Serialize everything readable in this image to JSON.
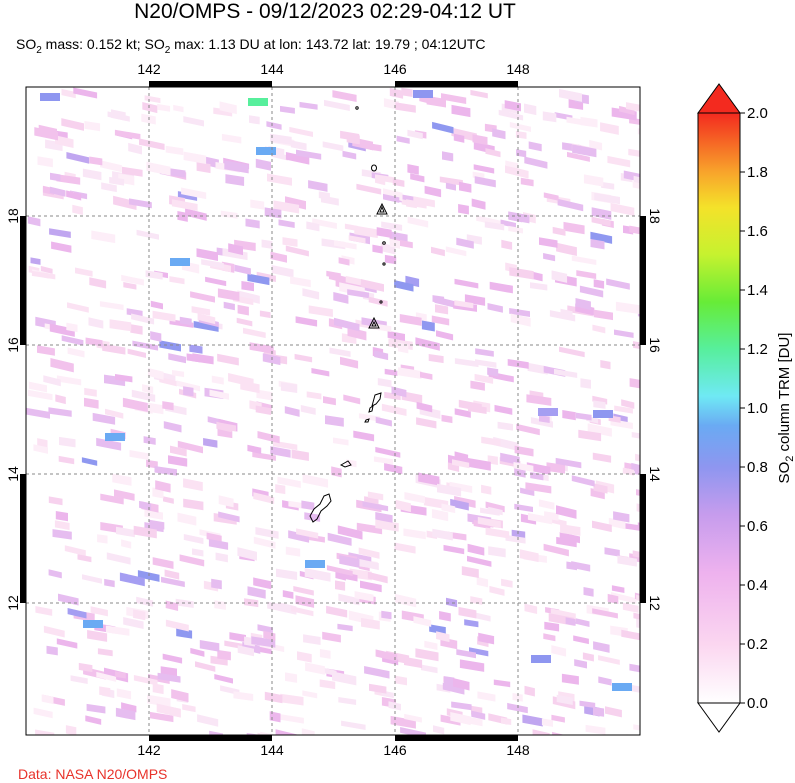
{
  "title": "N20/OMPS - 09/12/2023 02:29-04:12 UT",
  "subtitle": {
    "mass_label": "SO",
    "mass_sub": "2",
    "mass_text": " mass: 0.152 kt; SO",
    "max_sub": "2",
    "max_text": " max: 1.13 DU at lon: 143.72 lat: 19.79 ; 04:12UTC"
  },
  "credit": "Data: NASA N20/OMPS",
  "map": {
    "lon_ticks": [
      "142",
      "144",
      "146",
      "148"
    ],
    "lat_ticks": [
      "18",
      "16",
      "14",
      "12"
    ],
    "lon_range": [
      140.0,
      150.0
    ],
    "lat_range": [
      10.0,
      20.0
    ]
  },
  "colorbar": {
    "label": "SO2 column TRM [DU]",
    "label_main": "SO",
    "label_sub": "2",
    "label_rest": " column TRM [DU]",
    "ticks": [
      "0.0",
      "0.2",
      "0.4",
      "0.6",
      "0.8",
      "1.0",
      "1.2",
      "1.4",
      "1.6",
      "1.8",
      "2.0"
    ],
    "range": [
      0.0,
      2.0
    ]
  },
  "colors": {
    "credit": "#e8322a",
    "grid": "#888888",
    "frame": "#000000"
  }
}
